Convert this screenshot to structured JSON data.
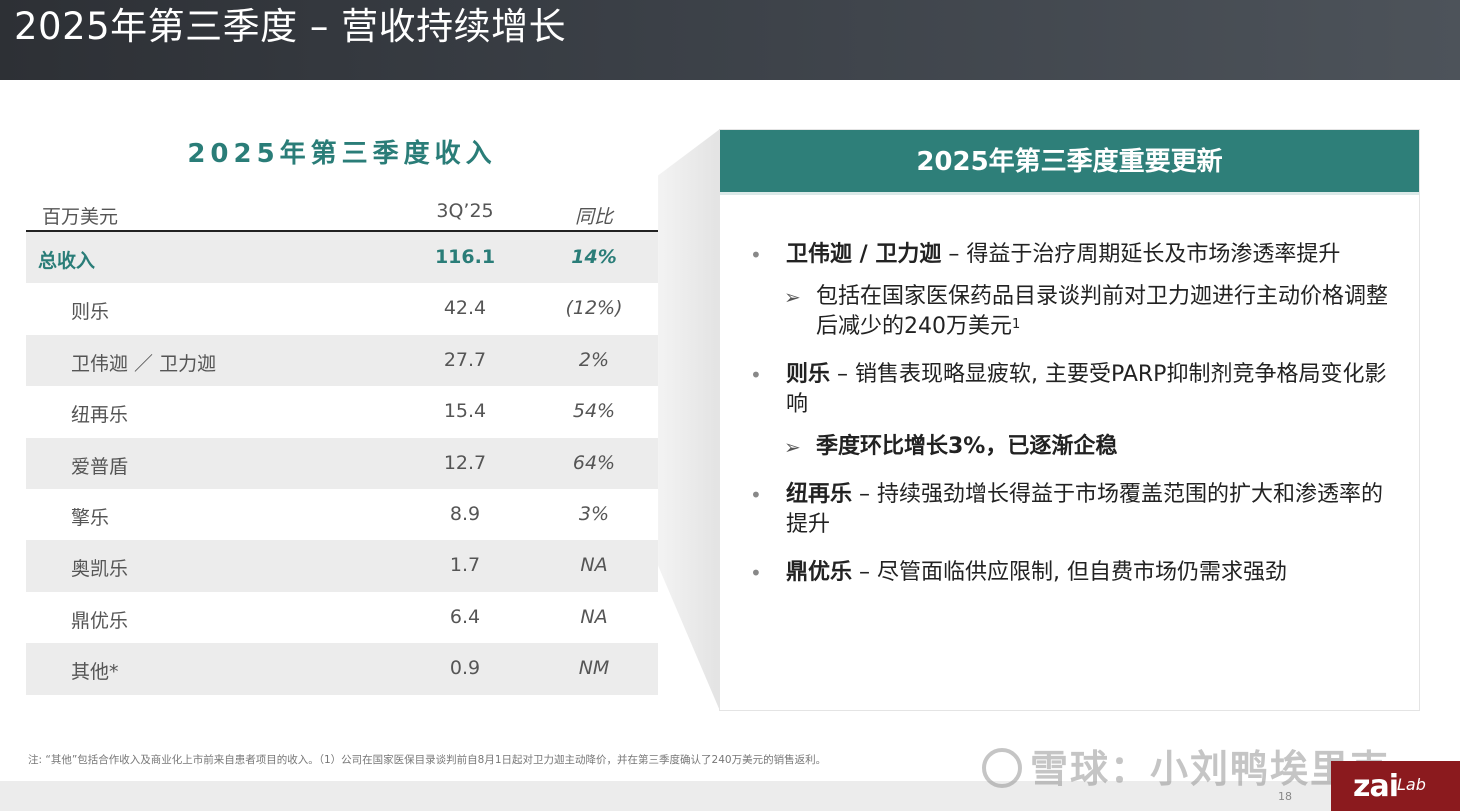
{
  "slide": {
    "title": "2025年第三季度 – 营收持续增长",
    "page_number": "18",
    "footnote": "注: “其他”包括合作收入及商业化上市前来自患者项目的收入。（1）公司在国家医保目录谈判前自8月1日起对卫力迦主动降价，并在第三季度确认了240万美元的销售返利。",
    "watermark": "雪球：小刘鸭埃里克",
    "logo": {
      "zai": "zai",
      "lab": "Lab"
    }
  },
  "revenue": {
    "heading": "2025年第三季度收入",
    "headers": {
      "unit": "百万美元",
      "period": "3Q’25",
      "yoy": "同比"
    },
    "total": {
      "name": "总收入",
      "value": "116.1",
      "yoy": "14%"
    },
    "rows": [
      {
        "name": "则乐",
        "value": "42.4",
        "yoy": "(12%)"
      },
      {
        "name": "卫伟迦 ／ 卫力迦",
        "value": "27.7",
        "yoy": "2%"
      },
      {
        "name": "纽再乐",
        "value": "15.4",
        "yoy": "54%"
      },
      {
        "name": "爱普盾",
        "value": "12.7",
        "yoy": "64%"
      },
      {
        "name": "擎乐",
        "value": "8.9",
        "yoy": "3%"
      },
      {
        "name": "奥凯乐",
        "value": "1.7",
        "yoy": "NA"
      },
      {
        "name": "鼎优乐",
        "value": "6.4",
        "yoy": "NA"
      },
      {
        "name": "其他*",
        "value": "0.9",
        "yoy": "NM"
      }
    ]
  },
  "updates": {
    "heading": "2025年第三季度重要更新",
    "b1": {
      "bold": "卫伟迦 / 卫力迦",
      "text": " – 得益于治疗周期延长及市场渗透率提升"
    },
    "s1": {
      "text": "包括在国家医保药品目录谈判前对卫力迦进行主动价格调整后减少的240万美元",
      "sup": "1"
    },
    "b2": {
      "bold": "则乐",
      "text": " – 销售表现略显疲软, 主要受PARP抑制剂竞争格局变化影响"
    },
    "s2": {
      "bold": "季度环比增长3%，已逐渐企稳"
    },
    "b3": {
      "bold": "纽再乐",
      "text": " – 持续强劲增长得益于市场覆盖范围的扩大和渗透率的提升"
    },
    "b4": {
      "bold": "鼎优乐",
      "text": " – 尽管面临供应限制, 但自费市场仍需求强劲"
    }
  }
}
